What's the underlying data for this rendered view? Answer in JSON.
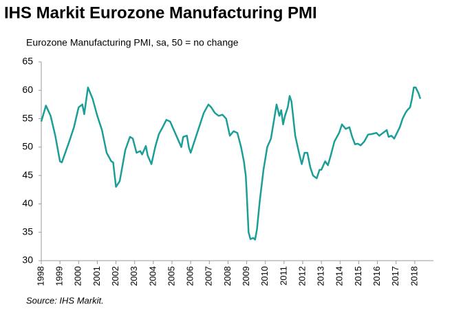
{
  "chart_data": {
    "type": "line",
    "title": "IHS Markit Eurozone Manufacturing PMI",
    "subtitle": "Eurozone Manufacturing PMI, sa, 50 = no change",
    "source": "Source: IHS Markit.",
    "grid": false,
    "xlim": [
      1998,
      2019
    ],
    "xticks": [
      1998,
      1999,
      2000,
      2001,
      2002,
      2003,
      2004,
      2005,
      2006,
      2007,
      2008,
      2009,
      2010,
      2011,
      2012,
      2013,
      2014,
      2015,
      2016,
      2017,
      2018
    ],
    "ylim": [
      30,
      65
    ],
    "yticks": [
      30,
      35,
      40,
      45,
      50,
      55,
      60,
      65
    ],
    "series": [
      {
        "color": "#1a9e96",
        "x": [
          1998.0,
          1998.25,
          1998.5,
          1998.75,
          1999.0,
          1999.1,
          1999.5,
          1999.75,
          2000.0,
          2000.2,
          2000.3,
          2000.5,
          2000.75,
          2001.0,
          2001.25,
          2001.5,
          2001.75,
          2001.85,
          2002.0,
          2002.2,
          2002.5,
          2002.75,
          2002.9,
          2003.1,
          2003.3,
          2003.4,
          2003.6,
          2003.7,
          2003.9,
          2004.1,
          2004.3,
          2004.5,
          2004.7,
          2004.9,
          2005.1,
          2005.3,
          2005.5,
          2005.6,
          2005.8,
          2005.9,
          2006.0,
          2006.2,
          2006.4,
          2006.7,
          2006.95,
          2007.1,
          2007.3,
          2007.5,
          2007.7,
          2007.9,
          2008.1,
          2008.3,
          2008.5,
          2008.7,
          2008.85,
          2008.95,
          2009.0,
          2009.1,
          2009.2,
          2009.35,
          2009.45,
          2009.55,
          2009.7,
          2009.9,
          2010.1,
          2010.3,
          2010.5,
          2010.6,
          2010.75,
          2010.85,
          2010.95,
          2011.05,
          2011.2,
          2011.3,
          2011.4,
          2011.5,
          2011.6,
          2011.8,
          2011.95,
          2012.1,
          2012.25,
          2012.4,
          2012.55,
          2012.75,
          2012.9,
          2013.0,
          2013.2,
          2013.35,
          2013.5,
          2013.7,
          2013.95,
          2014.1,
          2014.3,
          2014.5,
          2014.65,
          2014.8,
          2014.95,
          2015.1,
          2015.3,
          2015.5,
          2015.7,
          2015.95,
          2016.1,
          2016.3,
          2016.5,
          2016.6,
          2016.75,
          2016.9,
          2017.05,
          2017.2,
          2017.35,
          2017.5,
          2017.6,
          2017.75,
          2017.85,
          2017.95,
          2018.05,
          2018.2,
          2018.3
        ],
        "values": [
          54.5,
          57.3,
          55.5,
          52,
          47.5,
          47.3,
          51,
          53.5,
          57,
          57.5,
          55.8,
          60.5,
          58.5,
          55.5,
          53,
          49,
          47.5,
          47.3,
          43,
          44,
          49.5,
          51.8,
          51.5,
          49,
          49.3,
          48.7,
          50.2,
          48.5,
          47,
          50,
          52.3,
          53.5,
          54.8,
          54.5,
          53,
          51.5,
          50,
          51.8,
          52,
          50,
          49,
          51,
          53,
          56,
          57.5,
          57,
          56,
          55.5,
          55.7,
          55,
          52,
          52.8,
          52.5,
          50,
          47.5,
          45,
          42,
          35,
          33.8,
          34,
          33.7,
          35.5,
          40.5,
          46,
          50,
          51.5,
          55.5,
          57.5,
          55.5,
          56.5,
          54,
          55.5,
          57,
          59,
          58,
          55,
          52,
          49,
          47,
          49,
          49,
          46.5,
          45,
          44.5,
          46,
          46,
          47.5,
          46.8,
          48.5,
          51,
          52.5,
          54,
          53.2,
          53.5,
          51.8,
          50.5,
          50.6,
          50.3,
          51,
          52.2,
          52.3,
          52.5,
          52,
          52.5,
          53,
          51.8,
          52,
          51.5,
          52.5,
          53.5,
          55,
          56,
          56.5,
          57,
          58.5,
          60.5,
          60.5,
          59.5,
          58.5
        ]
      }
    ]
  }
}
